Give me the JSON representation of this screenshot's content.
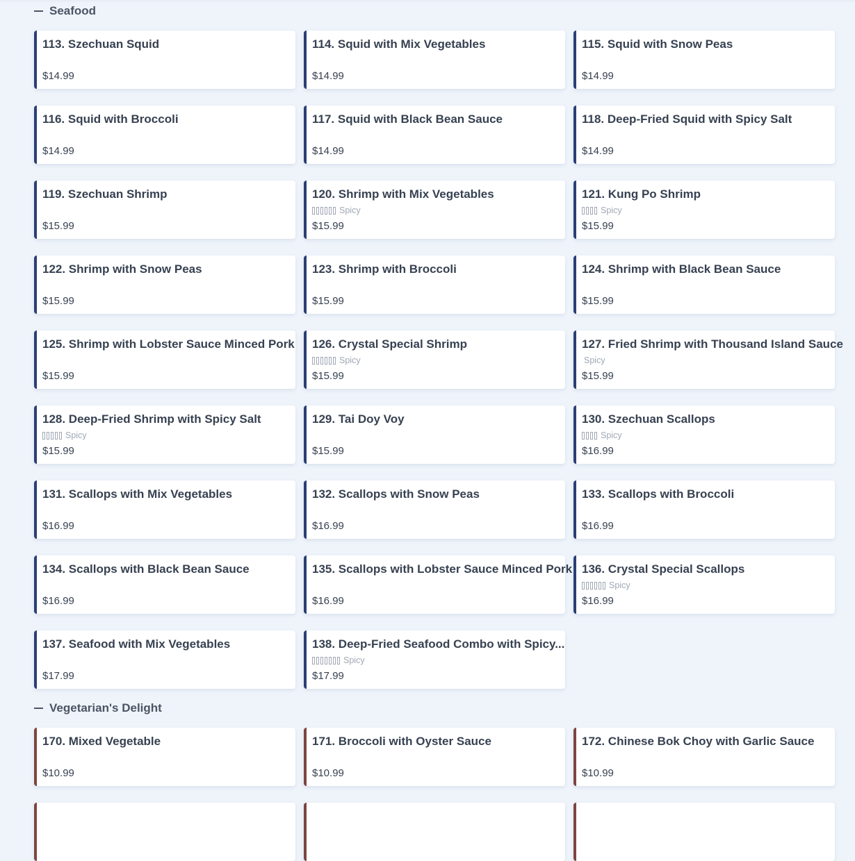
{
  "sections": [
    {
      "title": "Seafood",
      "accent": "#2b3f75",
      "items": [
        {
          "name": "113. Szechuan Squid",
          "price": "$14.99"
        },
        {
          "name": "114. Squid with Mix Vegetables",
          "price": "$14.99"
        },
        {
          "name": "115. Squid with Snow Peas",
          "price": "$14.99"
        },
        {
          "name": "116. Squid with Broccoli",
          "price": "$14.99"
        },
        {
          "name": "117. Squid with Black Bean Sauce",
          "price": "$14.99"
        },
        {
          "name": "118. Deep-Fried Squid with Spicy Salt",
          "price": "$14.99"
        },
        {
          "name": "119. Szechuan Shrimp",
          "price": "$15.99"
        },
        {
          "name": "120. Shrimp with Mix Vegetables",
          "price": "$15.99",
          "spicy": "Spicy",
          "spicy_icons": 6
        },
        {
          "name": "121. Kung Po Shrimp",
          "price": "$15.99",
          "spicy": "Spicy",
          "spicy_icons": 4
        },
        {
          "name": "122. Shrimp with Snow Peas",
          "price": "$15.99"
        },
        {
          "name": "123. Shrimp with Broccoli",
          "price": "$15.99"
        },
        {
          "name": "124. Shrimp with Black Bean Sauce",
          "price": "$15.99"
        },
        {
          "name": "125. Shrimp with Lobster Sauce Minced Pork",
          "price": "$15.99"
        },
        {
          "name": "126. Crystal Special Shrimp",
          "price": "$15.99",
          "spicy": "Spicy",
          "spicy_icons": 6
        },
        {
          "name": "127. Fried Shrimp with Thousand Island Sauce",
          "price": "$15.99",
          "spicy": "Spicy",
          "spicy_icons": 0
        },
        {
          "name": "128. Deep-Fried Shrimp with Spicy Salt",
          "price": "$15.99",
          "spicy": "Spicy",
          "spicy_icons": 5
        },
        {
          "name": "129. Tai Doy Voy",
          "price": "$15.99"
        },
        {
          "name": "130. Szechuan Scallops",
          "price": "$16.99",
          "spicy": "Spicy",
          "spicy_icons": 4
        },
        {
          "name": "131. Scallops with Mix Vegetables",
          "price": "$16.99"
        },
        {
          "name": "132. Scallops with Snow Peas",
          "price": "$16.99"
        },
        {
          "name": "133. Scallops with Broccoli",
          "price": "$16.99"
        },
        {
          "name": "134. Scallops with Black Bean Sauce",
          "price": "$16.99"
        },
        {
          "name": "135. Scallops with Lobster Sauce Minced Pork",
          "price": "$16.99"
        },
        {
          "name": "136. Crystal Special Scallops",
          "price": "$16.99",
          "spicy": "Spicy",
          "spicy_icons": 6
        },
        {
          "name": "137. Seafood with Mix Vegetables",
          "price": "$17.99"
        },
        {
          "name": "138. Deep-Fried Seafood Combo with Spicy...",
          "price": "$17.99",
          "spicy": "Spicy",
          "spicy_icons": 7
        }
      ]
    },
    {
      "title": "Vegetarian's Delight",
      "accent": "#7d4540",
      "items": [
        {
          "name": "170. Mixed Vegetable",
          "price": "$10.99"
        },
        {
          "name": "171. Broccoli with Oyster Sauce",
          "price": "$10.99"
        },
        {
          "name": "172. Chinese Bok Choy with Garlic Sauce",
          "price": "$10.99"
        },
        {
          "name": "",
          "price": ""
        },
        {
          "name": "",
          "price": ""
        },
        {
          "name": "",
          "price": ""
        }
      ]
    }
  ]
}
